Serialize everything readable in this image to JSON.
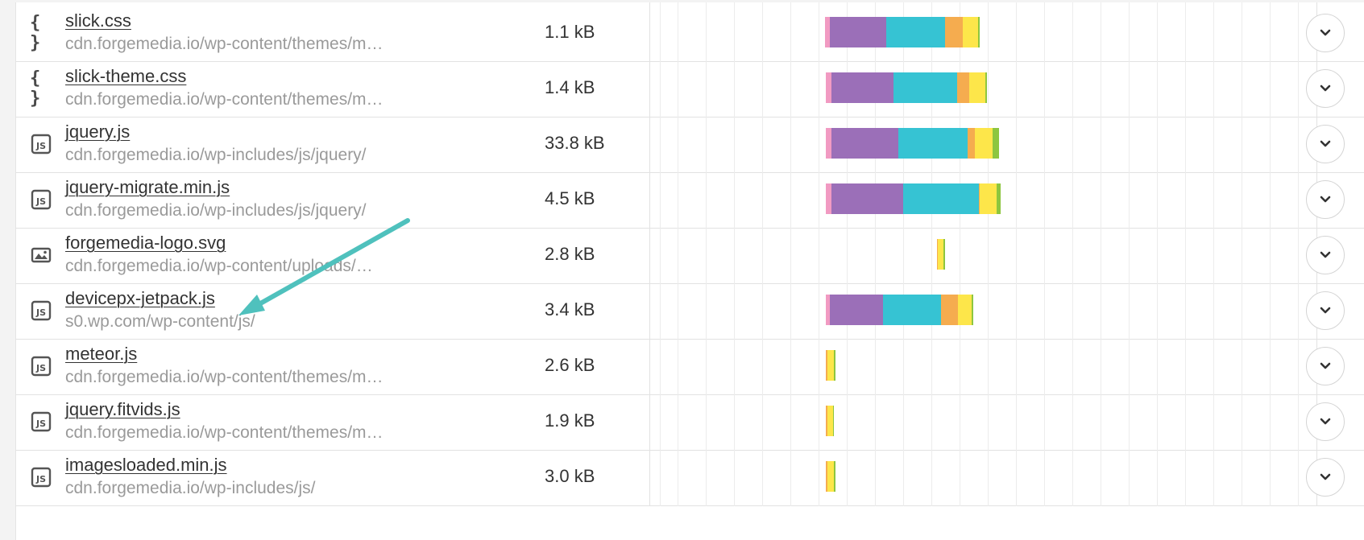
{
  "colors": {
    "blocking": "#f19ac2",
    "dns": "#9b6fb8",
    "connect": "#36c3d3",
    "send": "#f5ac4f",
    "wait": "#fde64a",
    "receive": "#8dc63f",
    "annotation_arrow": "#4fc1bd"
  },
  "rows": [
    {
      "icon": "css-file-icon",
      "name": "slick.css",
      "url": "cdn.forgemedia.io/wp-content/themes/m…",
      "size": "1.1 kB",
      "bar": {
        "start": 0.262,
        "segments": [
          [
            "blocking",
            0.008
          ],
          [
            "dns",
            0.084
          ],
          [
            "connect",
            0.088
          ],
          [
            "send",
            0.027
          ],
          [
            "wait",
            0.023
          ],
          [
            "receive",
            0.003
          ]
        ]
      }
    },
    {
      "icon": "css-file-icon",
      "name": "slick-theme.css",
      "url": "cdn.forgemedia.io/wp-content/themes/m…",
      "size": "1.4 kB",
      "bar": {
        "start": 0.264,
        "segments": [
          [
            "blocking",
            0.008
          ],
          [
            "dns",
            0.093
          ],
          [
            "connect",
            0.096
          ],
          [
            "send",
            0.018
          ],
          [
            "wait",
            0.024
          ],
          [
            "receive",
            0.002
          ]
        ]
      }
    },
    {
      "icon": "js-file-icon",
      "name": "jquery.js",
      "url": "cdn.forgemedia.io/wp-includes/js/jquery/",
      "size": "33.8 kB",
      "bar": {
        "start": 0.264,
        "segments": [
          [
            "blocking",
            0.008
          ],
          [
            "dns",
            0.1
          ],
          [
            "connect",
            0.105
          ],
          [
            "send",
            0.01
          ],
          [
            "wait",
            0.027
          ],
          [
            "receive",
            0.01
          ]
        ]
      }
    },
    {
      "icon": "js-file-icon",
      "name": "jquery-migrate.min.js",
      "url": "cdn.forgemedia.io/wp-includes/js/jquery/",
      "size": "4.5 kB",
      "bar": {
        "start": 0.264,
        "segments": [
          [
            "blocking",
            0.008
          ],
          [
            "dns",
            0.108
          ],
          [
            "connect",
            0.113
          ],
          [
            "send",
            0.002
          ],
          [
            "wait",
            0.025
          ],
          [
            "receive",
            0.006
          ]
        ]
      }
    },
    {
      "icon": "image-file-icon",
      "name": "forgemedia-logo.svg",
      "url": "cdn.forgemedia.io/wp-content/uploads/…",
      "size": "2.8 kB",
      "bar": {
        "start": 0.43,
        "segments": [
          [
            "send",
            0.002
          ],
          [
            "wait",
            0.008
          ],
          [
            "receive",
            0.003
          ]
        ]
      }
    },
    {
      "icon": "js-file-icon",
      "name": "devicepx-jetpack.js",
      "url": "s0.wp.com/wp-content/js/",
      "size": "3.4 kB",
      "bar": {
        "start": 0.264,
        "segments": [
          [
            "blocking",
            0.006
          ],
          [
            "dns",
            0.079
          ],
          [
            "connect",
            0.087
          ],
          [
            "send",
            0.026
          ],
          [
            "wait",
            0.02
          ],
          [
            "receive",
            0.003
          ]
        ]
      }
    },
    {
      "icon": "js-file-icon",
      "name": "meteor.js",
      "url": "cdn.forgemedia.io/wp-content/themes/m…",
      "size": "2.6 kB",
      "bar": {
        "start": 0.264,
        "segments": [
          [
            "send",
            0.002
          ],
          [
            "wait",
            0.01
          ],
          [
            "receive",
            0.002
          ]
        ]
      }
    },
    {
      "icon": "js-file-icon",
      "name": "jquery.fitvids.js",
      "url": "cdn.forgemedia.io/wp-content/themes/m…",
      "size": "1.9 kB",
      "bar": {
        "start": 0.264,
        "segments": [
          [
            "send",
            0.002
          ],
          [
            "wait",
            0.008
          ],
          [
            "receive",
            0.002
          ]
        ]
      }
    },
    {
      "icon": "js-file-icon",
      "name": "imagesloaded.min.js",
      "url": "cdn.forgemedia.io/wp-includes/js/",
      "size": "3.0 kB",
      "bar": {
        "start": 0.264,
        "segments": [
          [
            "send",
            0.002
          ],
          [
            "wait",
            0.01
          ],
          [
            "receive",
            0.002
          ]
        ]
      }
    }
  ]
}
